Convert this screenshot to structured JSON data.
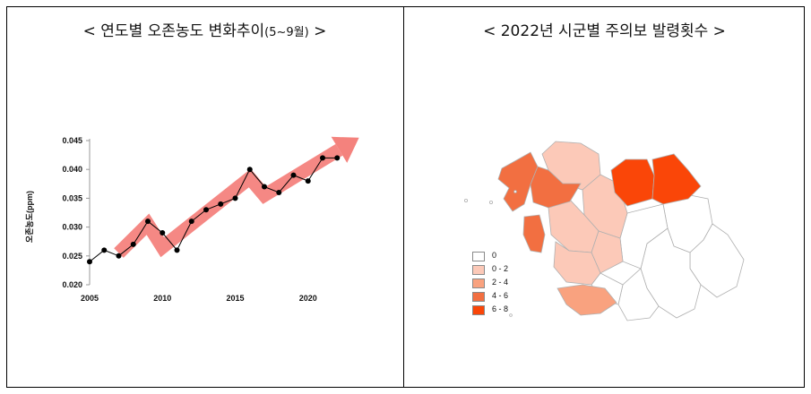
{
  "left_panel": {
    "title_main": "< 연도별  오존농도  변화추이",
    "title_sub": "(5~9월)",
    "title_end": " >"
  },
  "right_panel": {
    "title": "< 2022년  시군별  주의보  발령횟수 >"
  },
  "chart_data": [
    {
      "type": "line",
      "title": "연도별 오존농도 변화추이(5~9월)",
      "xlabel": "",
      "ylabel": "오존농도(ppm)",
      "x": [
        2005,
        2006,
        2007,
        2008,
        2009,
        2010,
        2011,
        2012,
        2013,
        2014,
        2015,
        2016,
        2017,
        2018,
        2019,
        2020,
        2021,
        2022
      ],
      "series": [
        {
          "values": [
            0.024,
            0.026,
            0.025,
            0.027,
            0.031,
            0.029,
            0.026,
            0.031,
            0.033,
            0.034,
            0.035,
            0.04,
            0.037,
            0.036,
            0.039,
            0.038,
            0.042,
            0.042
          ]
        }
      ],
      "trend_arrow": {
        "x": [
          2007,
          2009,
          2010,
          2016,
          2017,
          2023.5
        ],
        "y": [
          0.0255,
          0.0305,
          0.0265,
          0.0385,
          0.0355,
          0.0455
        ]
      },
      "xticks": [
        2005,
        2010,
        2015,
        2020
      ],
      "yticks": [
        0.02,
        0.025,
        0.03,
        0.035,
        0.04,
        0.045
      ],
      "ytick_labels": [
        "0.020",
        "0.025",
        "0.030",
        "0.035",
        "0.040",
        "0.045"
      ],
      "xlim": [
        2005,
        2025
      ],
      "ylim": [
        0.02,
        0.045
      ],
      "grid": false,
      "line_color": "#000000",
      "arrow_color": "#f4827d"
    },
    {
      "type": "heatmap",
      "title": "2022년 시군별 주의보 발령횟수",
      "legend": [
        {
          "label": "0",
          "color": "#ffffff"
        },
        {
          "label": "0 - 2",
          "color": "#fcc9b8"
        },
        {
          "label": "2 - 4",
          "color": "#f9a27f"
        },
        {
          "label": "4 - 6",
          "color": "#f26f41"
        },
        {
          "label": "6 - 8",
          "color": "#fa4608"
        }
      ],
      "legend_placement": "bottom-left"
    }
  ]
}
